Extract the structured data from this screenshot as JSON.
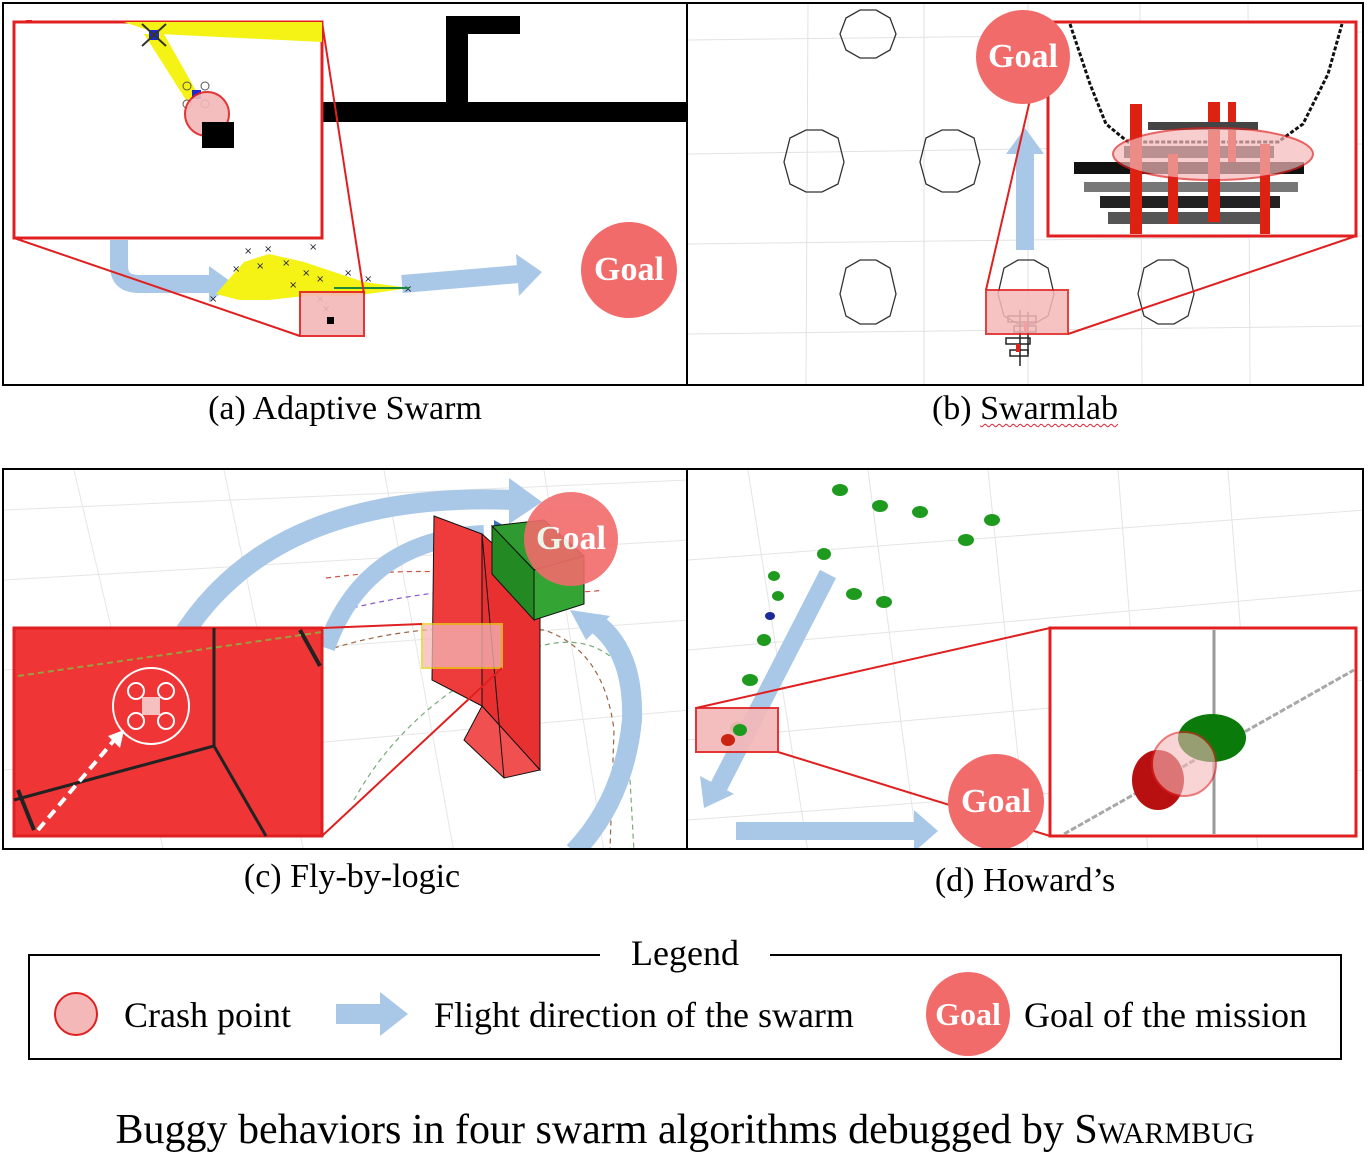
{
  "panels": {
    "a": {
      "caption": "(a) Adaptive Swarm",
      "goal": "Goal"
    },
    "b": {
      "caption_prefix": "(b) ",
      "caption_name": "Swarmlab",
      "goal": "Goal"
    },
    "c": {
      "caption": "(c) Fly-by-logic",
      "goal": "Goal"
    },
    "d": {
      "caption": "(d) Howard’s",
      "goal": "Goal"
    }
  },
  "legend": {
    "title": "Legend",
    "crash_point": "Crash point",
    "flight_direction": "Flight direction of the swarm",
    "goal_badge": "Goal",
    "goal_mission": "Goal of the mission"
  },
  "figure_title": {
    "prefix": "Buggy behaviors in four swarm algorithms debugged by S",
    "smallcaps": "WARMBUG"
  },
  "colors": {
    "goal": "#f26b6b",
    "crash": "#f5b8b8",
    "arrow": "#a9c8e8",
    "highlight": "#e02020"
  }
}
